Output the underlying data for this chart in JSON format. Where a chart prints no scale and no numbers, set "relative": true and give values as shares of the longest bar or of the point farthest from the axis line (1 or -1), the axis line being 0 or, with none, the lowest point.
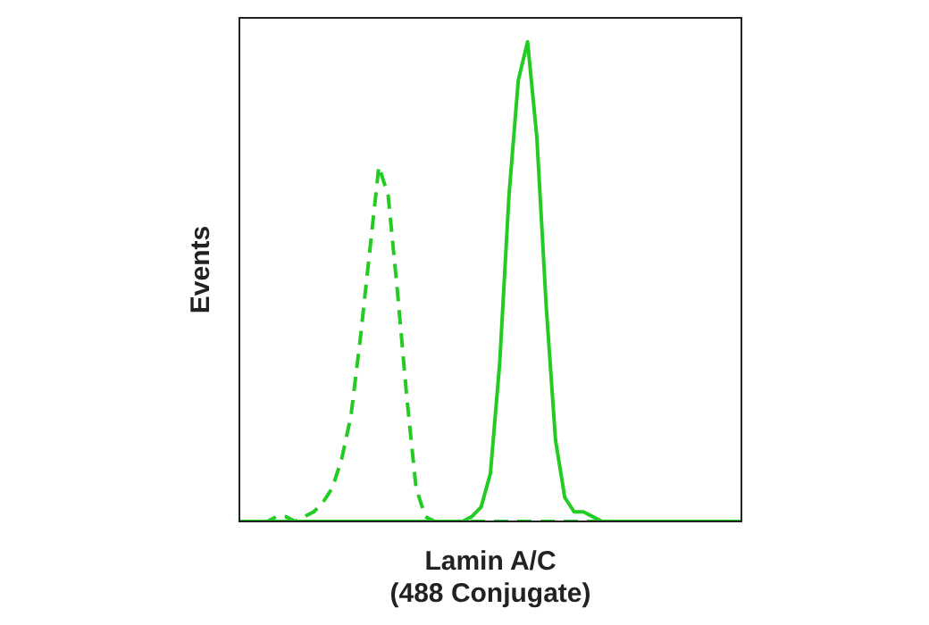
{
  "chart_data": {
    "type": "line",
    "relative": true,
    "xlabel": "Lamin A/C\n(488 Conjugate)",
    "ylabel": "Events",
    "legend": false,
    "grid": false,
    "tick_labels": false,
    "marker": "none",
    "categories": [
      null,
      null,
      null,
      null,
      null,
      null,
      null,
      null,
      null,
      null,
      null,
      null,
      null,
      null,
      null,
      null,
      null,
      null,
      null,
      null,
      null,
      null,
      null,
      null,
      null,
      null,
      null,
      null,
      null,
      null,
      null,
      null,
      null,
      null,
      null,
      null,
      null,
      null,
      null,
      null,
      null,
      null,
      null,
      null,
      null,
      null,
      null,
      null,
      null,
      null,
      null,
      null,
      null,
      null,
      null
    ],
    "series": [
      {
        "color": "#22cc22",
        "line_style": "dashed",
        "values": [
          0,
          0,
          0,
          0,
          0.01,
          0.01,
          0,
          0.01,
          0.02,
          0.04,
          0.07,
          0.13,
          0.22,
          0.38,
          0.56,
          0.74,
          0.68,
          0.48,
          0.26,
          0.07,
          0.01,
          0,
          0,
          0,
          0,
          0,
          0,
          0,
          0,
          0,
          0,
          0,
          0,
          0,
          0,
          0,
          0,
          0,
          0,
          0,
          0,
          0,
          0,
          0,
          0,
          0,
          0,
          0,
          0,
          0,
          0,
          0,
          0,
          0,
          0
        ]
      },
      {
        "color": "#22cc22",
        "line_style": "solid",
        "values": [
          0,
          0,
          0,
          0,
          0,
          0,
          0,
          0,
          0,
          0,
          0,
          0,
          0,
          0,
          0,
          0,
          0,
          0,
          0,
          0,
          0,
          0,
          0,
          0,
          0,
          0.01,
          0.03,
          0.1,
          0.33,
          0.68,
          0.92,
          1,
          0.8,
          0.45,
          0.17,
          0.05,
          0.02,
          0.02,
          0.01,
          0,
          0,
          0,
          0,
          0,
          0,
          0,
          0,
          0,
          0,
          0,
          0,
          0,
          0,
          0,
          0
        ]
      }
    ]
  }
}
